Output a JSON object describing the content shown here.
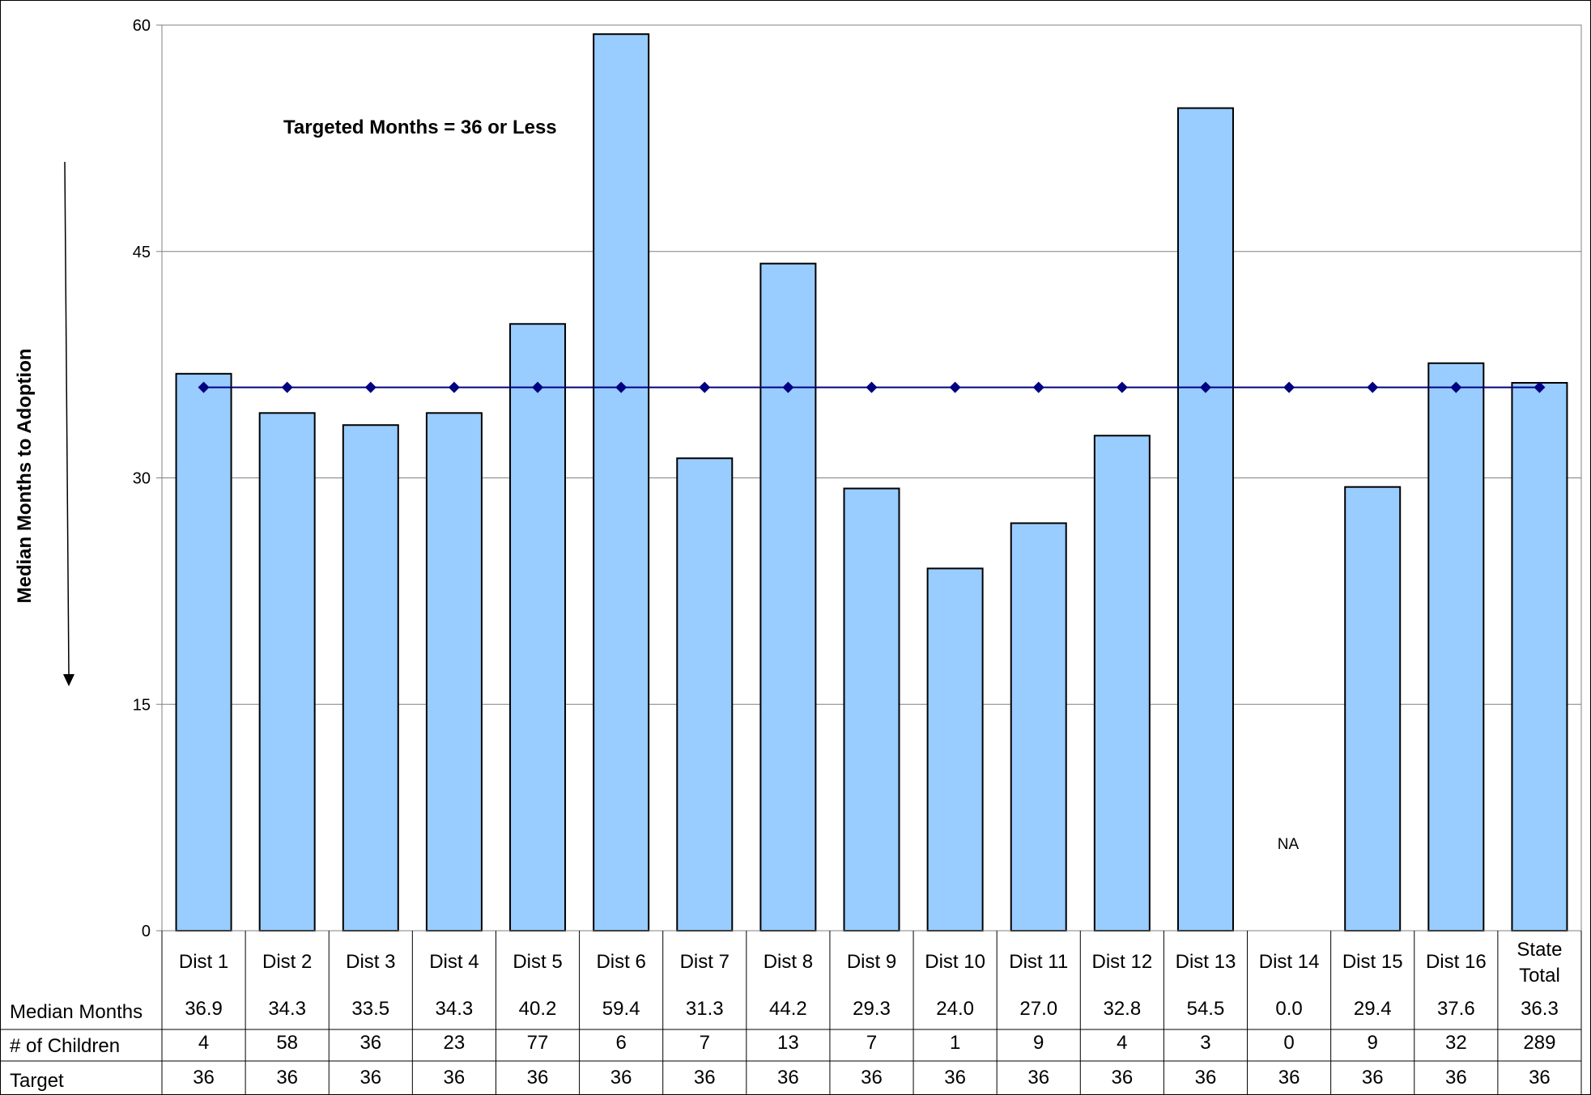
{
  "chart_data": {
    "type": "bar",
    "title": "",
    "ylabel": "Median Months to Adoption",
    "annotation": "Targeted Months = 36 or Less",
    "na_label": "NA",
    "ylim": [
      0,
      60
    ],
    "yticks": [
      "0",
      "15",
      "30",
      "45",
      "60"
    ],
    "grid": true,
    "categories": [
      "Dist 1",
      "Dist 2",
      "Dist 3",
      "Dist 4",
      "Dist 5",
      "Dist 6",
      "Dist 7",
      "Dist 8",
      "Dist 9",
      "Dist 10",
      "Dist 11",
      "Dist 12",
      "Dist 13",
      "Dist 14",
      "Dist 15",
      "Dist 16",
      "State Total"
    ],
    "category_lines": [
      [
        "Dist 1"
      ],
      [
        "Dist 2"
      ],
      [
        "Dist 3"
      ],
      [
        "Dist 4"
      ],
      [
        "Dist 5"
      ],
      [
        "Dist 6"
      ],
      [
        "Dist 7"
      ],
      [
        "Dist 8"
      ],
      [
        "Dist 9"
      ],
      [
        "Dist 10"
      ],
      [
        "Dist 11"
      ],
      [
        "Dist 12"
      ],
      [
        "Dist 13"
      ],
      [
        "Dist 14"
      ],
      [
        "Dist 15"
      ],
      [
        "Dist 16"
      ],
      [
        "State",
        "Total"
      ]
    ],
    "series": [
      {
        "name": "Median Months",
        "type": "bar",
        "values": [
          36.9,
          34.3,
          33.5,
          34.3,
          40.2,
          59.4,
          31.3,
          44.2,
          29.3,
          24.0,
          27.0,
          32.8,
          54.5,
          0.0,
          29.4,
          37.6,
          36.3
        ],
        "display": [
          "36.9",
          "34.3",
          "33.5",
          "34.3",
          "40.2",
          "59.4",
          "31.3",
          "44.2",
          "29.3",
          "24.0",
          "27.0",
          "32.8",
          "54.5",
          "0.0",
          "29.4",
          "37.6",
          "36.3"
        ]
      },
      {
        "name": "Target",
        "type": "line",
        "values": [
          36,
          36,
          36,
          36,
          36,
          36,
          36,
          36,
          36,
          36,
          36,
          36,
          36,
          36,
          36,
          36,
          36
        ],
        "display": [
          "36",
          "36",
          "36",
          "36",
          "36",
          "36",
          "36",
          "36",
          "36",
          "36",
          "36",
          "36",
          "36",
          "36",
          "36",
          "36",
          "36"
        ]
      }
    ],
    "table": {
      "rows": [
        {
          "label": "Median Months",
          "values": [
            "36.9",
            "34.3",
            "33.5",
            "34.3",
            "40.2",
            "59.4",
            "31.3",
            "44.2",
            "29.3",
            "24.0",
            "27.0",
            "32.8",
            "54.5",
            "0.0",
            "29.4",
            "37.6",
            "36.3"
          ]
        },
        {
          "label": "# of Children",
          "values": [
            "4",
            "58",
            "36",
            "23",
            "77",
            "6",
            "7",
            "13",
            "7",
            "1",
            "9",
            "4",
            "3",
            "0",
            "9",
            "32",
            "289"
          ]
        },
        {
          "label": "Target",
          "values": [
            "36",
            "36",
            "36",
            "36",
            "36",
            "36",
            "36",
            "36",
            "36",
            "36",
            "36",
            "36",
            "36",
            "36",
            "36",
            "36",
            "36"
          ]
        }
      ]
    },
    "colors": {
      "bar": "#99ccff",
      "bar_stroke": "#000000",
      "target_line": "#000080",
      "grid": "#808080"
    }
  }
}
